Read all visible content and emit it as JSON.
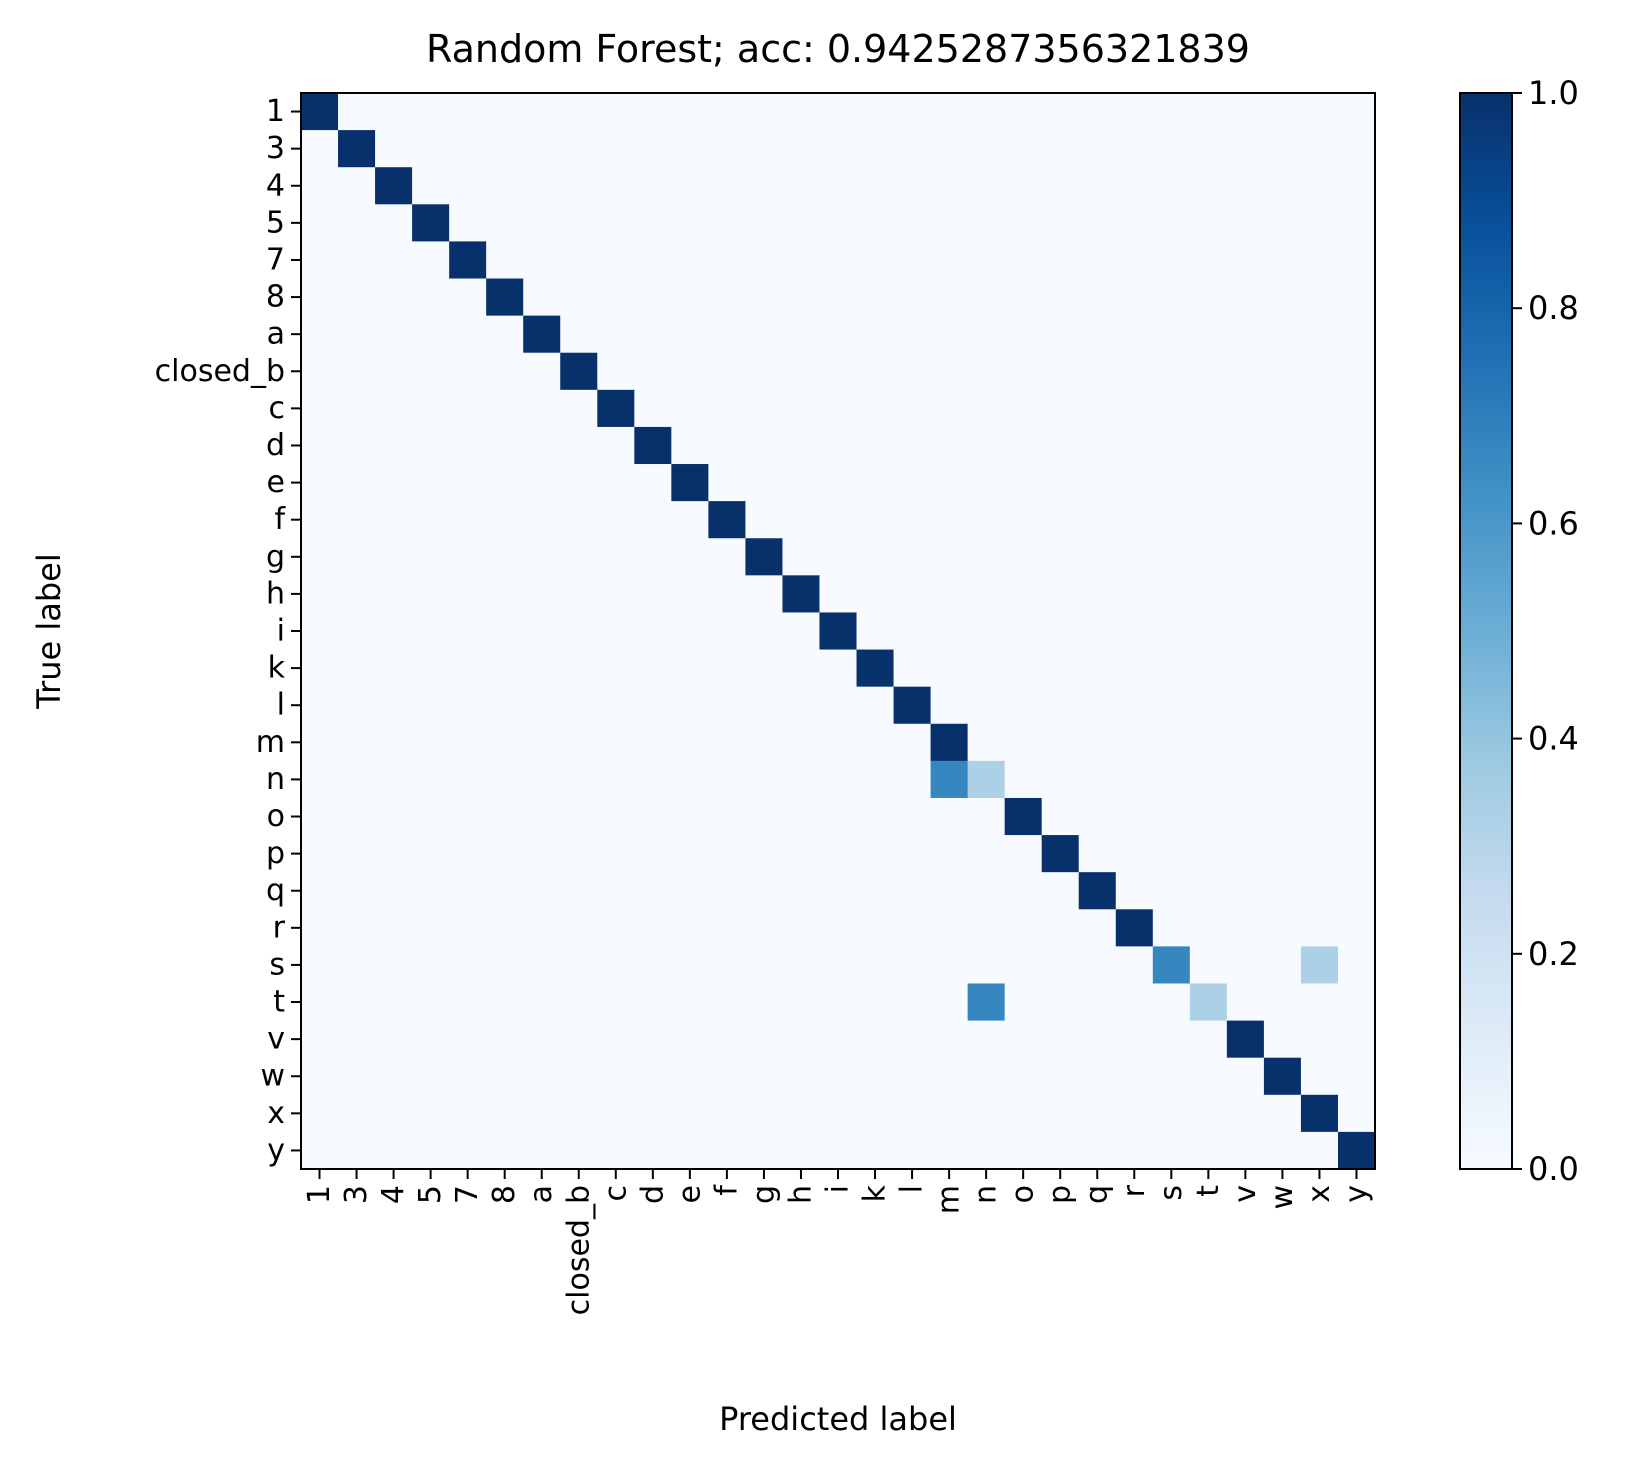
{
  "chart_data": {
    "type": "heatmap",
    "title": "Random Forest; acc: 0.9425287356321839",
    "xlabel": "Predicted label",
    "ylabel": "True label",
    "labels": [
      "1",
      "3",
      "4",
      "5",
      "7",
      "8",
      "a",
      "closed_b",
      "c",
      "d",
      "e",
      "f",
      "g",
      "h",
      "i",
      "k",
      "l",
      "m",
      "n",
      "o",
      "p",
      "q",
      "r",
      "s",
      "t",
      "v",
      "w",
      "x",
      "y"
    ],
    "cells": [
      {
        "row": "n",
        "col": "m",
        "value": 0.67
      },
      {
        "row": "n",
        "col": "n",
        "value": 0.33
      },
      {
        "row": "s",
        "col": "s",
        "value": 0.67
      },
      {
        "row": "s",
        "col": "x",
        "value": 0.33
      },
      {
        "row": "t",
        "col": "n",
        "value": 0.67
      },
      {
        "row": "t",
        "col": "t",
        "value": 0.33
      }
    ],
    "diagonal_default": 1.0,
    "off_diagonal_default": 0.0,
    "colormap": "Blues",
    "colorbar": {
      "range": [
        0.0,
        1.0
      ],
      "ticks": [
        "0.0",
        "0.2",
        "0.4",
        "0.6",
        "0.8",
        "1.0"
      ]
    }
  }
}
